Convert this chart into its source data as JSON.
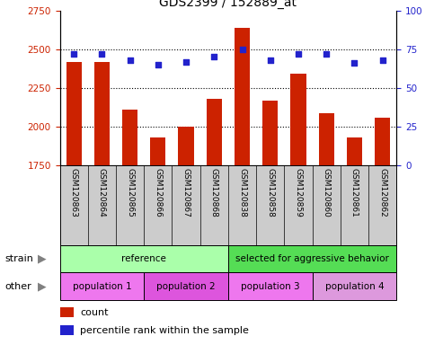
{
  "title": "GDS2399 / 152889_at",
  "samples": [
    "GSM120863",
    "GSM120864",
    "GSM120865",
    "GSM120866",
    "GSM120867",
    "GSM120868",
    "GSM120838",
    "GSM120858",
    "GSM120859",
    "GSM120860",
    "GSM120861",
    "GSM120862"
  ],
  "counts": [
    2420,
    2420,
    2110,
    1930,
    2000,
    2180,
    2640,
    2170,
    2340,
    2090,
    1930,
    2060
  ],
  "percentile": [
    72,
    72,
    68,
    65,
    67,
    70,
    75,
    68,
    72,
    72,
    66,
    68
  ],
  "ylim_left": [
    1750,
    2750
  ],
  "ylim_right": [
    0,
    100
  ],
  "yticks_left": [
    1750,
    2000,
    2250,
    2500,
    2750
  ],
  "yticks_right": [
    0,
    25,
    50,
    75,
    100
  ],
  "bar_color": "#cc2200",
  "dot_color": "#2222cc",
  "grid_color": "#000000",
  "tick_label_color_left": "#cc2200",
  "tick_label_color_right": "#2222cc",
  "strain_groups": [
    {
      "label": "reference",
      "start": 0,
      "end": 6,
      "color": "#aaffaa"
    },
    {
      "label": "selected for aggressive behavior",
      "start": 6,
      "end": 12,
      "color": "#55dd55"
    }
  ],
  "other_groups": [
    {
      "label": "population 1",
      "start": 0,
      "end": 3,
      "color": "#ee77ee"
    },
    {
      "label": "population 2",
      "start": 3,
      "end": 6,
      "color": "#dd55dd"
    },
    {
      "label": "population 3",
      "start": 6,
      "end": 9,
      "color": "#ee77ee"
    },
    {
      "label": "population 4",
      "start": 9,
      "end": 12,
      "color": "#dd99dd"
    }
  ],
  "xlabel_strain": "strain",
  "xlabel_other": "other",
  "legend_count_color": "#cc2200",
  "legend_dot_color": "#2222cc",
  "legend_count_label": "count",
  "legend_dot_label": "percentile rank within the sample",
  "sample_bg_color": "#cccccc",
  "sample_label_fontsize": 6.5,
  "bar_width": 0.55
}
